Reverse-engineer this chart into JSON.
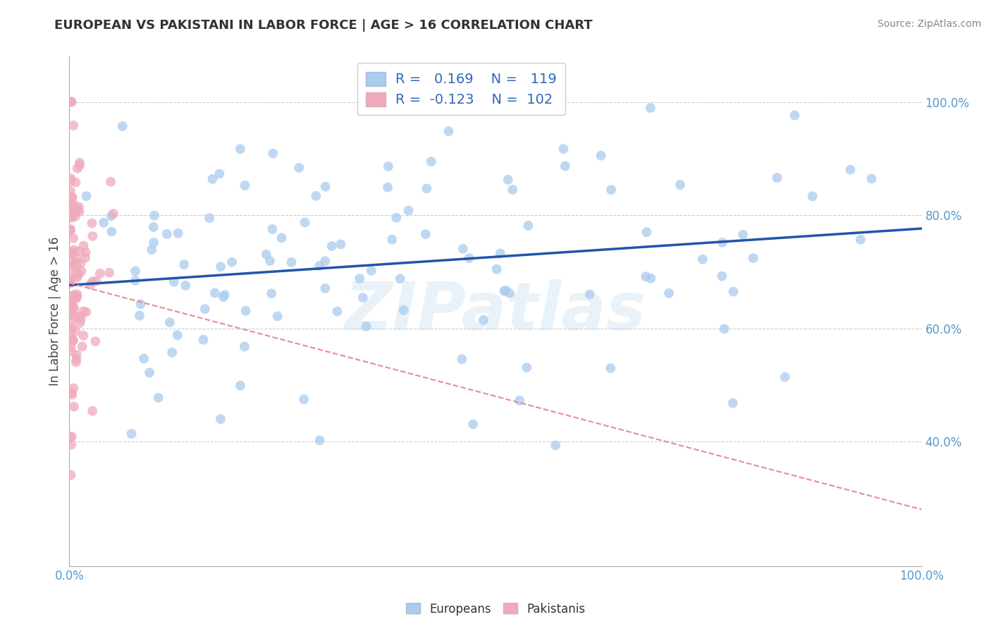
{
  "title": "EUROPEAN VS PAKISTANI IN LABOR FORCE | AGE > 16 CORRELATION CHART",
  "source": "Source: ZipAtlas.com",
  "ylabel": "In Labor Force | Age > 16",
  "european_color": "#aaccee",
  "pakistani_color": "#f0aabb",
  "european_line_color": "#2255aa",
  "pakistani_line_color": "#ee8899",
  "R_european": 0.169,
  "N_european": 119,
  "R_pakistani": -0.123,
  "N_pakistani": 102,
  "tick_color": "#5599cc",
  "title_color": "#333333",
  "source_color": "#888888",
  "watermark": "ZIPatlas",
  "watermark_color": "#c8dff0",
  "legend_label_eur": "Europeans",
  "legend_label_pak": "Pakistanis",
  "xlim": [
    0.0,
    1.0
  ],
  "ylim": [
    0.18,
    1.08
  ],
  "ytick_positions": [
    0.4,
    0.6,
    0.8,
    1.0
  ],
  "ytick_labels": [
    "40.0%",
    "60.0%",
    "80.0%",
    "100.0%"
  ]
}
